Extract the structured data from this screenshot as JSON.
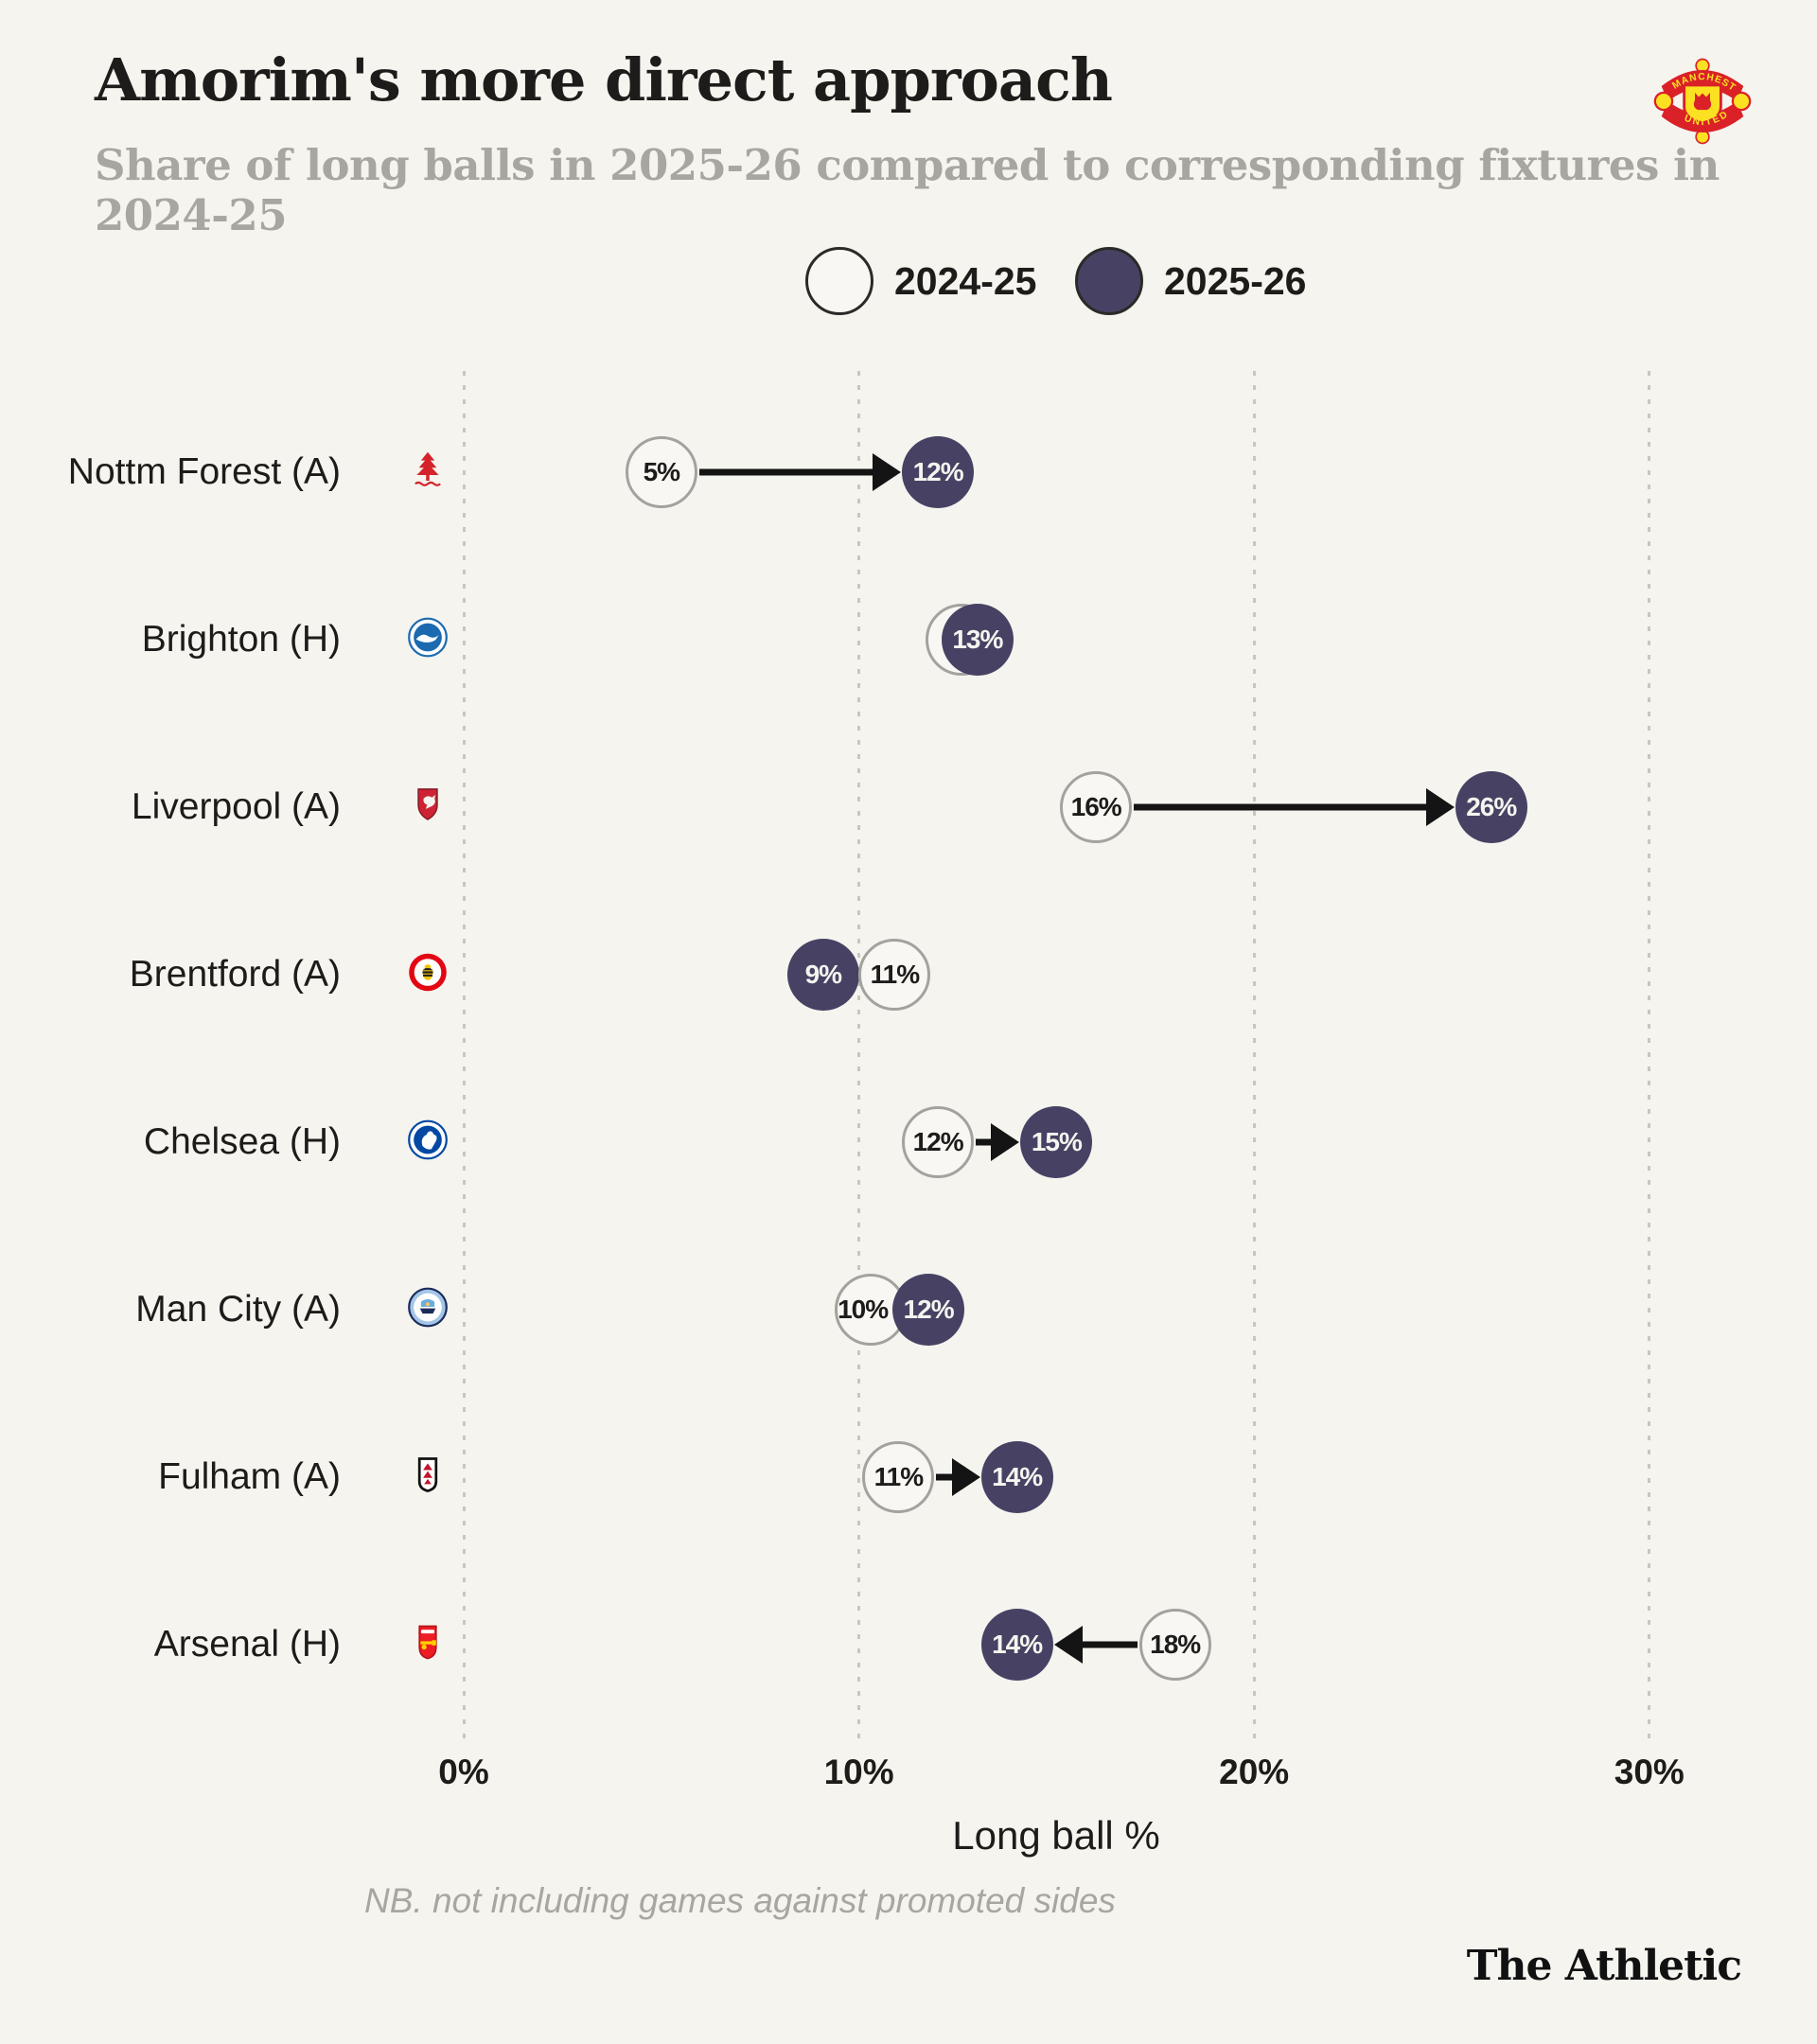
{
  "header": {
    "title": "Amorim's more direct approach",
    "subtitle": "Share of long balls in 2025-26 compared to corresponding fixtures in 2024-25",
    "club_badge": "Manchester United"
  },
  "legend": {
    "items": [
      {
        "label": "2024-25",
        "style": "open"
      },
      {
        "label": "2025-26",
        "style": "filled"
      }
    ]
  },
  "chart_data": {
    "type": "dumbbell",
    "title": "Amorim's more direct approach",
    "subtitle": "Share of long balls in 2025-26 compared to corresponding fixtures in 2024-25",
    "xlabel": "Long ball %",
    "xlim": [
      0,
      32
    ],
    "grid": "dotted-vertical",
    "x_ticks": [
      {
        "value": 0,
        "label": "0%"
      },
      {
        "value": 10,
        "label": "10%"
      },
      {
        "value": 20,
        "label": "20%"
      },
      {
        "value": 30,
        "label": "30%"
      }
    ],
    "series_names": [
      "2024-25",
      "2025-26"
    ],
    "rows": [
      {
        "team": "Nottm Forest (A)",
        "crest": "forest",
        "old_pct": 5,
        "new_pct": 12,
        "old_label": "5%",
        "new_label": "12%",
        "arrow": true
      },
      {
        "team": "Brighton (H)",
        "crest": "brighton",
        "old_pct": 12.6,
        "new_pct": 13,
        "old_label": "",
        "new_label": "13%",
        "arrow": false,
        "overlap_note": "2024-25 circle hidden behind 2025-26 circle"
      },
      {
        "team": "Liverpool (A)",
        "crest": "liverpool",
        "old_pct": 16,
        "new_pct": 26,
        "old_label": "16%",
        "new_label": "26%",
        "arrow": true
      },
      {
        "team": "Brentford (A)",
        "crest": "brentford",
        "old_pct": 11,
        "new_pct": 9,
        "old_label": "11%",
        "new_label": "9%",
        "arrow": false
      },
      {
        "team": "Chelsea (H)",
        "crest": "chelsea",
        "old_pct": 12,
        "new_pct": 15,
        "old_label": "12%",
        "new_label": "15%",
        "arrow": true
      },
      {
        "team": "Man City (A)",
        "crest": "mancity",
        "old_pct": 10,
        "new_pct": 12,
        "old_label": "10%",
        "new_label": "12%",
        "arrow": false
      },
      {
        "team": "Fulham (A)",
        "crest": "fulham",
        "old_pct": 11,
        "new_pct": 14,
        "old_label": "11%",
        "new_label": "14%",
        "arrow": true
      },
      {
        "team": "Arsenal (H)",
        "crest": "arsenal",
        "old_pct": 18,
        "new_pct": 14,
        "old_label": "18%",
        "new_label": "14%",
        "arrow": true
      }
    ],
    "note": "NB. not including games against promoted sides"
  },
  "footer": {
    "brand": "The Athletic"
  },
  "colors": {
    "background": "#f5f4ef",
    "ink": "#1d1c1a",
    "subtitle_gray": "#a7a6a1",
    "filled_circle": "#474263",
    "open_circle_fill": "#f8f7f3",
    "open_circle_border": "#a3a29e",
    "gridline": "#c7c6c1",
    "arrow": "#141414"
  }
}
